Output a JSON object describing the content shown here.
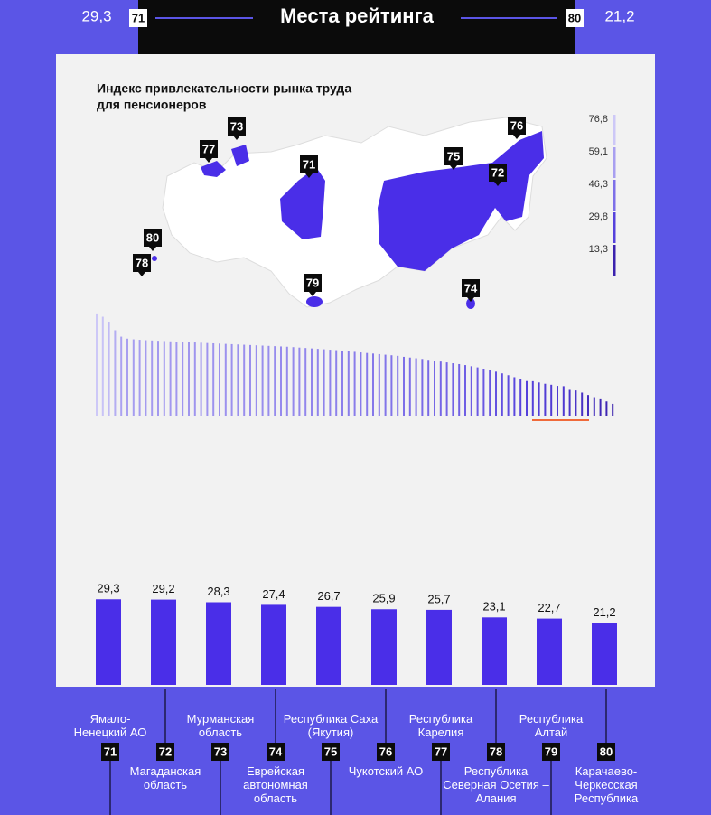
{
  "header": {
    "title": "Места рейтинга"
  },
  "map": {
    "title": [
      "Индекс привлекательности рынка труда",
      "для пенсионеров"
    ],
    "legend": {
      "ticks": [
        {
          "value": 76.8,
          "label": "76,8"
        },
        {
          "value": 59.1,
          "label": "59,1"
        },
        {
          "value": 46.3,
          "label": "46,3"
        },
        {
          "value": 29.8,
          "label": "29,8"
        },
        {
          "value": 13.3,
          "label": "13,3"
        }
      ],
      "colors": [
        "#cdc8f7",
        "#a89ff0",
        "#7d6fe8",
        "#5541dc",
        "#3b22ae"
      ]
    }
  },
  "chart_data": [
    {
      "type": "bar",
      "ylim": [
        5,
        78
      ],
      "values": [
        76.8,
        74.5,
        71.0,
        65.0,
        60.5,
        59.1,
        58.6,
        58.3,
        58.0,
        57.8,
        57.6,
        57.4,
        57.2,
        57.0,
        56.8,
        56.6,
        56.4,
        56.2,
        56.0,
        55.8,
        55.6,
        55.4,
        55.2,
        55.0,
        54.8,
        54.6,
        54.4,
        54.2,
        54.0,
        53.8,
        53.6,
        53.4,
        53.1,
        52.8,
        52.5,
        52.2,
        51.9,
        51.6,
        51.3,
        51.0,
        50.6,
        50.2,
        49.8,
        49.4,
        49.0,
        48.6,
        48.2,
        47.8,
        47.4,
        47.0,
        46.3,
        45.8,
        45.3,
        44.8,
        44.2,
        43.6,
        43.0,
        42.4,
        41.8,
        41.2,
        40.5,
        39.7,
        38.9,
        38.0,
        37.0,
        35.9,
        34.7,
        33.4,
        32.0,
        30.5,
        29.3,
        29.2,
        28.3,
        27.4,
        26.7,
        25.9,
        25.7,
        23.1,
        22.7,
        21.2,
        19.5,
        18.0,
        16.5,
        15.0,
        13.3
      ]
    },
    {
      "type": "bar",
      "color": "#4a2ee8",
      "ylim": [
        0,
        30
      ],
      "categories": [
        "Ямало-Ненецкий АО",
        "Магаданская область",
        "Мурманская область",
        "Еврейская автономная область",
        "Республика Саха (Якутия)",
        "Чукотский АО",
        "Республика Карелия",
        "Республика Северная Осетия – Алания",
        "Республика Алтай",
        "Карачаево-Черкесская Республика"
      ],
      "ranks": [
        "71",
        "72",
        "73",
        "74",
        "75",
        "76",
        "77",
        "78",
        "79",
        "80"
      ],
      "values": [
        29.3,
        29.2,
        28.3,
        27.4,
        26.7,
        25.9,
        25.7,
        23.1,
        22.7,
        21.2
      ],
      "value_labels": [
        "29,3",
        "29,2",
        "28,3",
        "27,4",
        "26,7",
        "25,9",
        "25,7",
        "23,1",
        "22,7",
        "21,2"
      ]
    }
  ]
}
